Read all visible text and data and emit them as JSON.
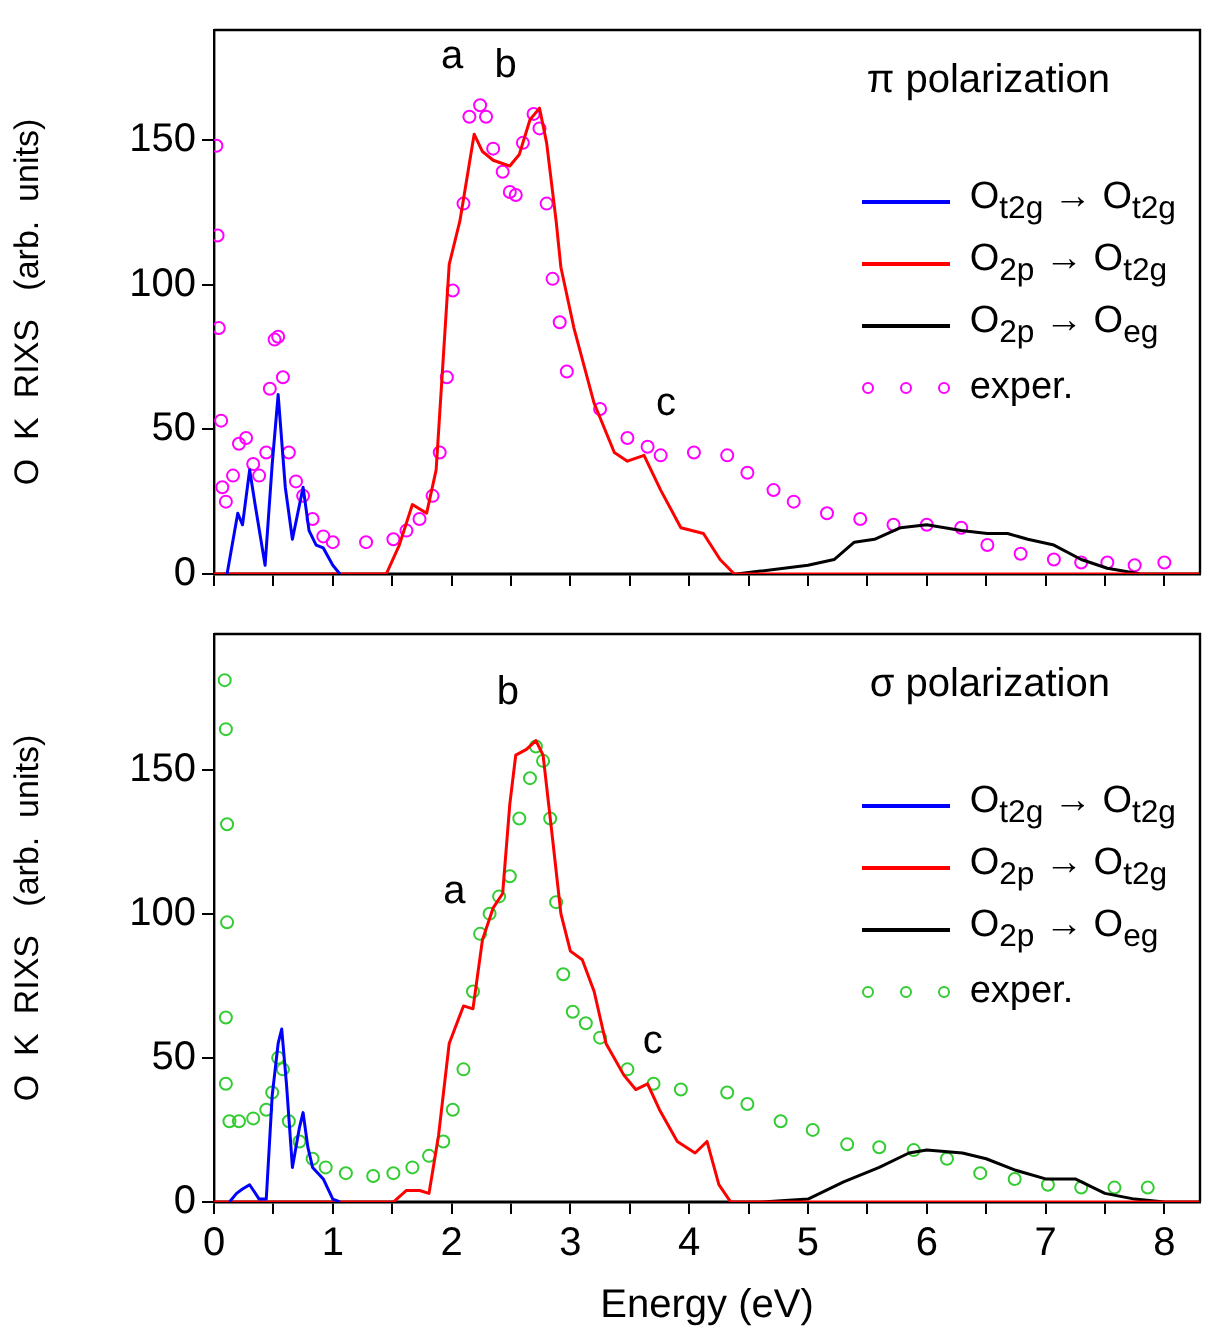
{
  "chart_data": [
    {
      "type": "line",
      "title": "π polarization",
      "ylabel": "O  K  RIXS   (arb.  units)",
      "xlim": [
        0,
        8.3
      ],
      "xticks": [
        0,
        {
          "value": 0.5,
          "label": null
        },
        1,
        {
          "value": 1.5,
          "label": null
        },
        2,
        {
          "value": 2.5,
          "label": null
        },
        3,
        {
          "value": 3.5,
          "label": null
        },
        4,
        {
          "value": 4.5,
          "label": null
        },
        5,
        {
          "value": 5.5,
          "label": null
        },
        6,
        {
          "value": 6.5,
          "label": null
        },
        7,
        {
          "value": 7.5,
          "label": null
        },
        8
      ],
      "ylim": [
        0,
        188
      ],
      "yticks": [
        0,
        50,
        100,
        150
      ],
      "tick_labels": "y",
      "grid": false,
      "legend": "top right",
      "annotations": [
        {
          "text": "a",
          "x": 2.24,
          "y": 162
        },
        {
          "text": "b",
          "x": 2.69,
          "y": 159
        },
        {
          "text": "c",
          "x": 4.04,
          "y": 42
        }
      ],
      "series": [
        {
          "name": "O$_{t2g}$ → O$_{t2g}$",
          "type": "line",
          "marker": "none",
          "color": "#0000ff",
          "x": [
            0.11,
            0.2,
            0.24,
            0.3,
            0.35,
            0.43,
            0.49,
            0.54,
            0.6,
            0.66,
            0.75,
            0.8,
            0.86,
            0.92,
            1.0,
            1.06
          ],
          "values": [
            0,
            21,
            17,
            36,
            23,
            3,
            38,
            62,
            30,
            12,
            30,
            15,
            10,
            9,
            3,
            0
          ]
        },
        {
          "name": "O$_{2p}$ → O$_{t2g}$",
          "type": "line",
          "marker": "none",
          "color": "#ff0000",
          "x": [
            0,
            1.45,
            1.56,
            1.67,
            1.79,
            1.87,
            1.98,
            2.07,
            2.19,
            2.26,
            2.35,
            2.49,
            2.57,
            2.66,
            2.74,
            2.8,
            2.88,
            2.92,
            3.03,
            3.2,
            3.37,
            3.48,
            3.62,
            3.76,
            3.93,
            4.12,
            4.26,
            4.38,
            8.3
          ],
          "values": [
            0,
            0,
            10,
            24,
            21,
            36,
            107,
            122,
            152,
            146,
            143,
            141,
            145,
            157,
            161,
            149,
            122,
            106,
            85,
            59,
            42,
            39,
            41,
            29,
            16,
            14,
            5,
            0,
            0
          ]
        },
        {
          "name": "O$_{2p}$ → O$_{eg}$",
          "type": "line",
          "marker": "none",
          "color": "#000000",
          "x": [
            0,
            4.4,
            4.6,
            5.0,
            5.22,
            5.39,
            5.56,
            5.78,
            6.0,
            6.29,
            6.51,
            6.68,
            6.85,
            7.07,
            7.3,
            7.52,
            7.8,
            8.3
          ],
          "values": [
            0,
            0,
            1,
            3,
            5,
            11,
            12,
            16,
            17,
            15,
            14,
            14,
            12,
            10,
            5,
            2,
            0,
            0
          ]
        },
        {
          "name": "exper.",
          "type": "scatter",
          "marker": "circle",
          "color": "#ff00ff",
          "x": [
            0.02,
            0.03,
            0.04,
            0.06,
            0.07,
            0.1,
            0.16,
            0.21,
            0.27,
            0.33,
            0.38,
            0.44,
            0.47,
            0.51,
            0.54,
            0.58,
            0.63,
            0.69,
            0.75,
            0.83,
            0.92,
            1.0,
            1.28,
            1.51,
            1.62,
            1.73,
            1.84,
            1.9,
            1.96,
            2.01,
            2.1,
            2.15,
            2.24,
            2.29,
            2.35,
            2.43,
            2.49,
            2.54,
            2.6,
            2.69,
            2.74,
            2.8,
            2.85,
            2.91,
            2.97,
            3.25,
            3.48,
            3.65,
            3.76,
            4.04,
            4.32,
            4.49,
            4.71,
            4.88,
            5.16,
            5.44,
            5.72,
            6.0,
            6.29,
            6.51,
            6.79,
            7.07,
            7.3,
            7.52,
            7.75,
            8.0
          ],
          "values": [
            148,
            117,
            85,
            53,
            30,
            25,
            34,
            45,
            47,
            38,
            34,
            42,
            64,
            81,
            82,
            68,
            42,
            32,
            27,
            19,
            13,
            11,
            11,
            12,
            15,
            19,
            27,
            42,
            68,
            98,
            128,
            158,
            162,
            158,
            147,
            139,
            132,
            131,
            149,
            159,
            154,
            128,
            102,
            87,
            70,
            57,
            47,
            44,
            41,
            42,
            41,
            35,
            29,
            25,
            21,
            19,
            17,
            17,
            16,
            10,
            7,
            5,
            4,
            4,
            3,
            4
          ]
        }
      ]
    },
    {
      "type": "line",
      "title": "σ polarization",
      "xlabel": "Energy (eV)",
      "ylabel": "O  K  RIXS   (arb.  units)",
      "xlim": [
        0,
        8.3
      ],
      "xticks": [
        0,
        {
          "value": 0.5,
          "label": null
        },
        1,
        {
          "value": 1.5,
          "label": null
        },
        2,
        {
          "value": 2.5,
          "label": null
        },
        3,
        {
          "value": 3.5,
          "label": null
        },
        4,
        {
          "value": 4.5,
          "label": null
        },
        5,
        {
          "value": 5.5,
          "label": null
        },
        6,
        {
          "value": 6.5,
          "label": null
        },
        7,
        {
          "value": 7.5,
          "label": null
        },
        8
      ],
      "ylim": [
        0,
        197
      ],
      "yticks": [
        0,
        50,
        100,
        150
      ],
      "grid": false,
      "legend": "top right",
      "annotations": [
        {
          "text": "a",
          "x": 2.26,
          "y": 91
        },
        {
          "text": "b",
          "x": 2.71,
          "y": 160
        },
        {
          "text": "c",
          "x": 3.93,
          "y": 39
        }
      ],
      "series": [
        {
          "name": "O$_{t2g}$ → O$_{t2g}$",
          "type": "line",
          "marker": "none",
          "color": "#0000ff",
          "x": [
            0.13,
            0.19,
            0.24,
            0.3,
            0.38,
            0.44,
            0.49,
            0.54,
            0.57,
            0.61,
            0.66,
            0.72,
            0.75,
            0.79,
            0.83,
            0.92,
            1.0,
            1.06
          ],
          "values": [
            0,
            3,
            4.5,
            6,
            1,
            1,
            37,
            55,
            60,
            41,
            12,
            26,
            31,
            19,
            12,
            8,
            1,
            0
          ]
        },
        {
          "name": "O$_{2p}$ → O$_{t2g}$",
          "type": "line",
          "marker": "none",
          "color": "#ff0000",
          "x": [
            0,
            1.51,
            1.62,
            1.73,
            1.81,
            1.89,
            1.98,
            2.1,
            2.18,
            2.26,
            2.35,
            2.43,
            2.49,
            2.54,
            2.63,
            2.71,
            2.77,
            2.85,
            2.92,
            3.0,
            3.1,
            3.2,
            3.3,
            3.45,
            3.55,
            3.65,
            3.75,
            3.9,
            4.05,
            4.15,
            4.25,
            4.35,
            8.3
          ],
          "values": [
            0,
            0,
            4,
            4,
            3,
            23,
            55,
            68,
            67,
            91,
            102,
            107,
            138,
            155,
            157,
            160,
            155,
            126,
            100,
            87,
            84,
            73,
            55,
            44,
            39,
            41,
            32,
            21,
            17,
            21,
            6,
            0,
            0
          ]
        },
        {
          "name": "O$_{2p}$ → O$_{eg}$",
          "type": "line",
          "marker": "none",
          "color": "#000000",
          "x": [
            0,
            4.6,
            5.0,
            5.3,
            5.6,
            5.85,
            6.0,
            6.3,
            6.5,
            6.75,
            7.0,
            7.25,
            7.5,
            7.75,
            8.0,
            8.3
          ],
          "values": [
            0,
            0,
            1,
            7,
            12,
            17,
            18,
            17,
            15,
            11,
            8,
            8,
            3,
            1,
            0,
            0
          ]
        },
        {
          "name": "exper.",
          "type": "scatter",
          "marker": "circle",
          "color": "#33cc33",
          "x": [
            0.09,
            0.1,
            0.11,
            0.11,
            0.1,
            0.1,
            0.13,
            0.21,
            0.33,
            0.44,
            0.49,
            0.54,
            0.58,
            0.63,
            0.72,
            0.83,
            0.94,
            1.11,
            1.34,
            1.51,
            1.67,
            1.81,
            1.93,
            2.01,
            2.1,
            2.18,
            2.24,
            2.32,
            2.4,
            2.49,
            2.57,
            2.66,
            2.71,
            2.77,
            2.83,
            2.88,
            2.94,
            3.02,
            3.13,
            3.25,
            3.48,
            3.7,
            3.93,
            4.32,
            4.49,
            4.77,
            5.04,
            5.33,
            5.6,
            5.89,
            6.17,
            6.45,
            6.74,
            7.02,
            7.3,
            7.58,
            7.86
          ],
          "values": [
            181,
            164,
            131,
            97,
            64,
            41,
            28,
            28,
            29,
            32,
            38,
            50,
            46,
            28,
            21,
            15,
            12,
            10,
            9,
            10,
            12,
            16,
            21,
            32,
            46,
            73,
            93,
            100,
            106,
            113,
            133,
            147,
            158,
            153,
            133,
            104,
            79,
            66,
            62,
            57,
            46,
            41,
            39,
            38,
            34,
            28,
            25,
            20,
            19,
            18,
            15,
            10,
            8,
            6,
            5,
            5,
            5
          ]
        }
      ]
    }
  ]
}
